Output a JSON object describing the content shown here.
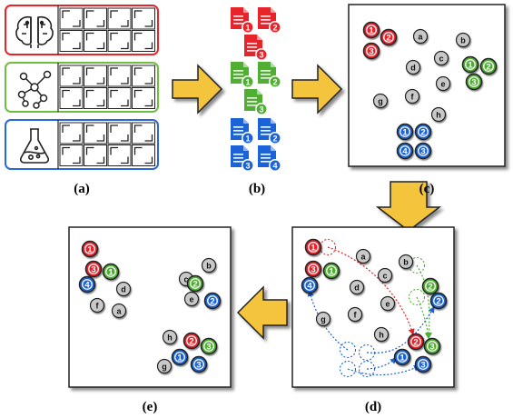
{
  "colors": {
    "red": "#e8242b",
    "green": "#4fae33",
    "blue": "#1b63d6",
    "gray": "#c9c9c9",
    "arrow": "#f5c43d",
    "frame_red": "#e8242b",
    "frame_green": "#6dbf3f",
    "frame_blue": "#2a66d9"
  },
  "icons": [
    "brain-icon",
    "network-icon",
    "flask-icon"
  ],
  "panels": {
    "a": {
      "label": "(a)"
    },
    "b": {
      "label": "(b)"
    },
    "c": {
      "label": "(c)",
      "clusters": [
        {
          "color": "red",
          "labels": [
            "1",
            "2",
            "3"
          ]
        },
        {
          "color": "green",
          "labels": [
            "1",
            "2",
            "3"
          ]
        },
        {
          "color": "blue",
          "labels": [
            "1",
            "2",
            "4",
            "3"
          ]
        }
      ],
      "gray_nodes": [
        "a",
        "b",
        "c",
        "d",
        "e",
        "f",
        "g",
        "h"
      ]
    },
    "d": {
      "label": "(d)",
      "gray_nodes": [
        "a",
        "b",
        "c",
        "d",
        "e",
        "f",
        "g",
        "h"
      ],
      "colored_nodes": [
        {
          "color": "red",
          "label": "1"
        },
        {
          "color": "red",
          "label": "3"
        },
        {
          "color": "green",
          "label": "1"
        },
        {
          "color": "blue",
          "label": "4"
        },
        {
          "color": "green",
          "label": "2"
        },
        {
          "color": "blue",
          "label": "2"
        },
        {
          "color": "red",
          "label": "2"
        },
        {
          "color": "green",
          "label": "3"
        },
        {
          "color": "blue",
          "label": "1"
        },
        {
          "color": "blue",
          "label": "3"
        }
      ]
    },
    "e": {
      "label": "(e)",
      "gray_nodes": [
        "d",
        "f",
        "a",
        "c",
        "b",
        "e",
        "h",
        "g"
      ],
      "colored_nodes": [
        {
          "color": "red",
          "label": "1"
        },
        {
          "color": "red",
          "label": "3"
        },
        {
          "color": "green",
          "label": "1"
        },
        {
          "color": "blue",
          "label": "4"
        },
        {
          "color": "green",
          "label": "2"
        },
        {
          "color": "blue",
          "label": "2"
        },
        {
          "color": "red",
          "label": "2"
        },
        {
          "color": "green",
          "label": "3"
        },
        {
          "color": "blue",
          "label": "1"
        },
        {
          "color": "blue",
          "label": "3"
        }
      ]
    }
  },
  "documents": [
    {
      "color": "red",
      "labels": [
        "1",
        "2",
        "3"
      ]
    },
    {
      "color": "green",
      "labels": [
        "1",
        "2",
        "3"
      ]
    },
    {
      "color": "blue",
      "labels": [
        "1",
        "2",
        "3",
        "4"
      ]
    }
  ]
}
